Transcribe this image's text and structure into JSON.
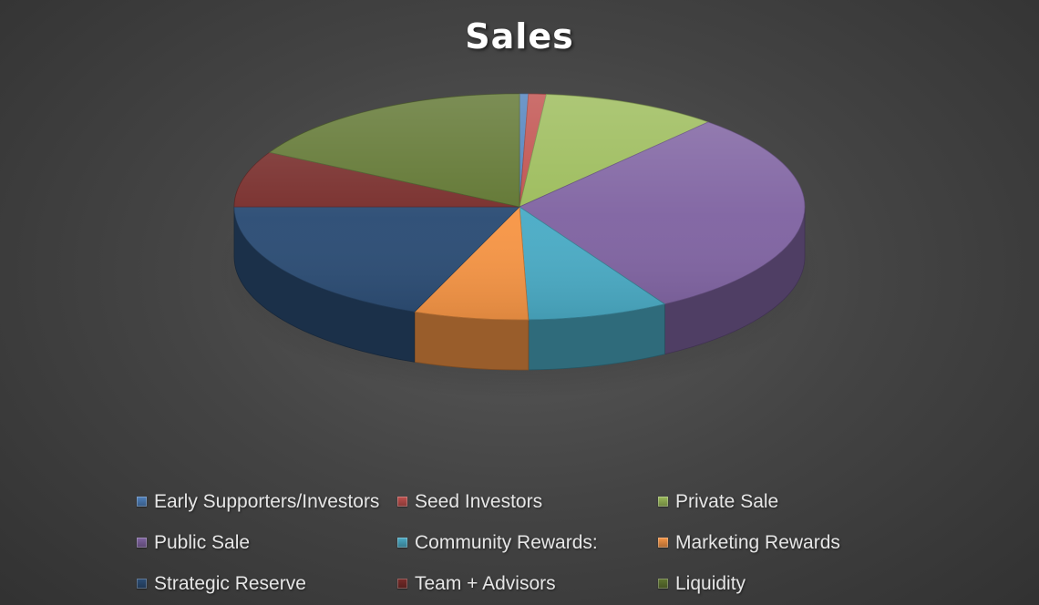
{
  "chart_data": {
    "type": "pie",
    "title": "Sales",
    "legend_position": "bottom",
    "slices": [
      {
        "label": "Early Supporters/Investors",
        "value": 0.5,
        "color": "#4f81bd"
      },
      {
        "label": "Seed Investors",
        "value": 1,
        "color": "#c0504d"
      },
      {
        "label": "Private Sale",
        "value": 10,
        "color": "#9bbb59"
      },
      {
        "label": "Public Sale",
        "value": 30,
        "color": "#8064a2"
      },
      {
        "label": "Community Rewards:",
        "value": 8,
        "color": "#4bacc6"
      },
      {
        "label": "Marketing Rewards",
        "value": 6.5,
        "color": "#f79646"
      },
      {
        "label": "Strategic Reserve",
        "value": 19,
        "color": "#2c4d75"
      },
      {
        "label": "Team + Advisors",
        "value": 8,
        "color": "#772c2a"
      },
      {
        "label": "Liquidity",
        "value": 17,
        "color": "#5f7530"
      }
    ]
  }
}
